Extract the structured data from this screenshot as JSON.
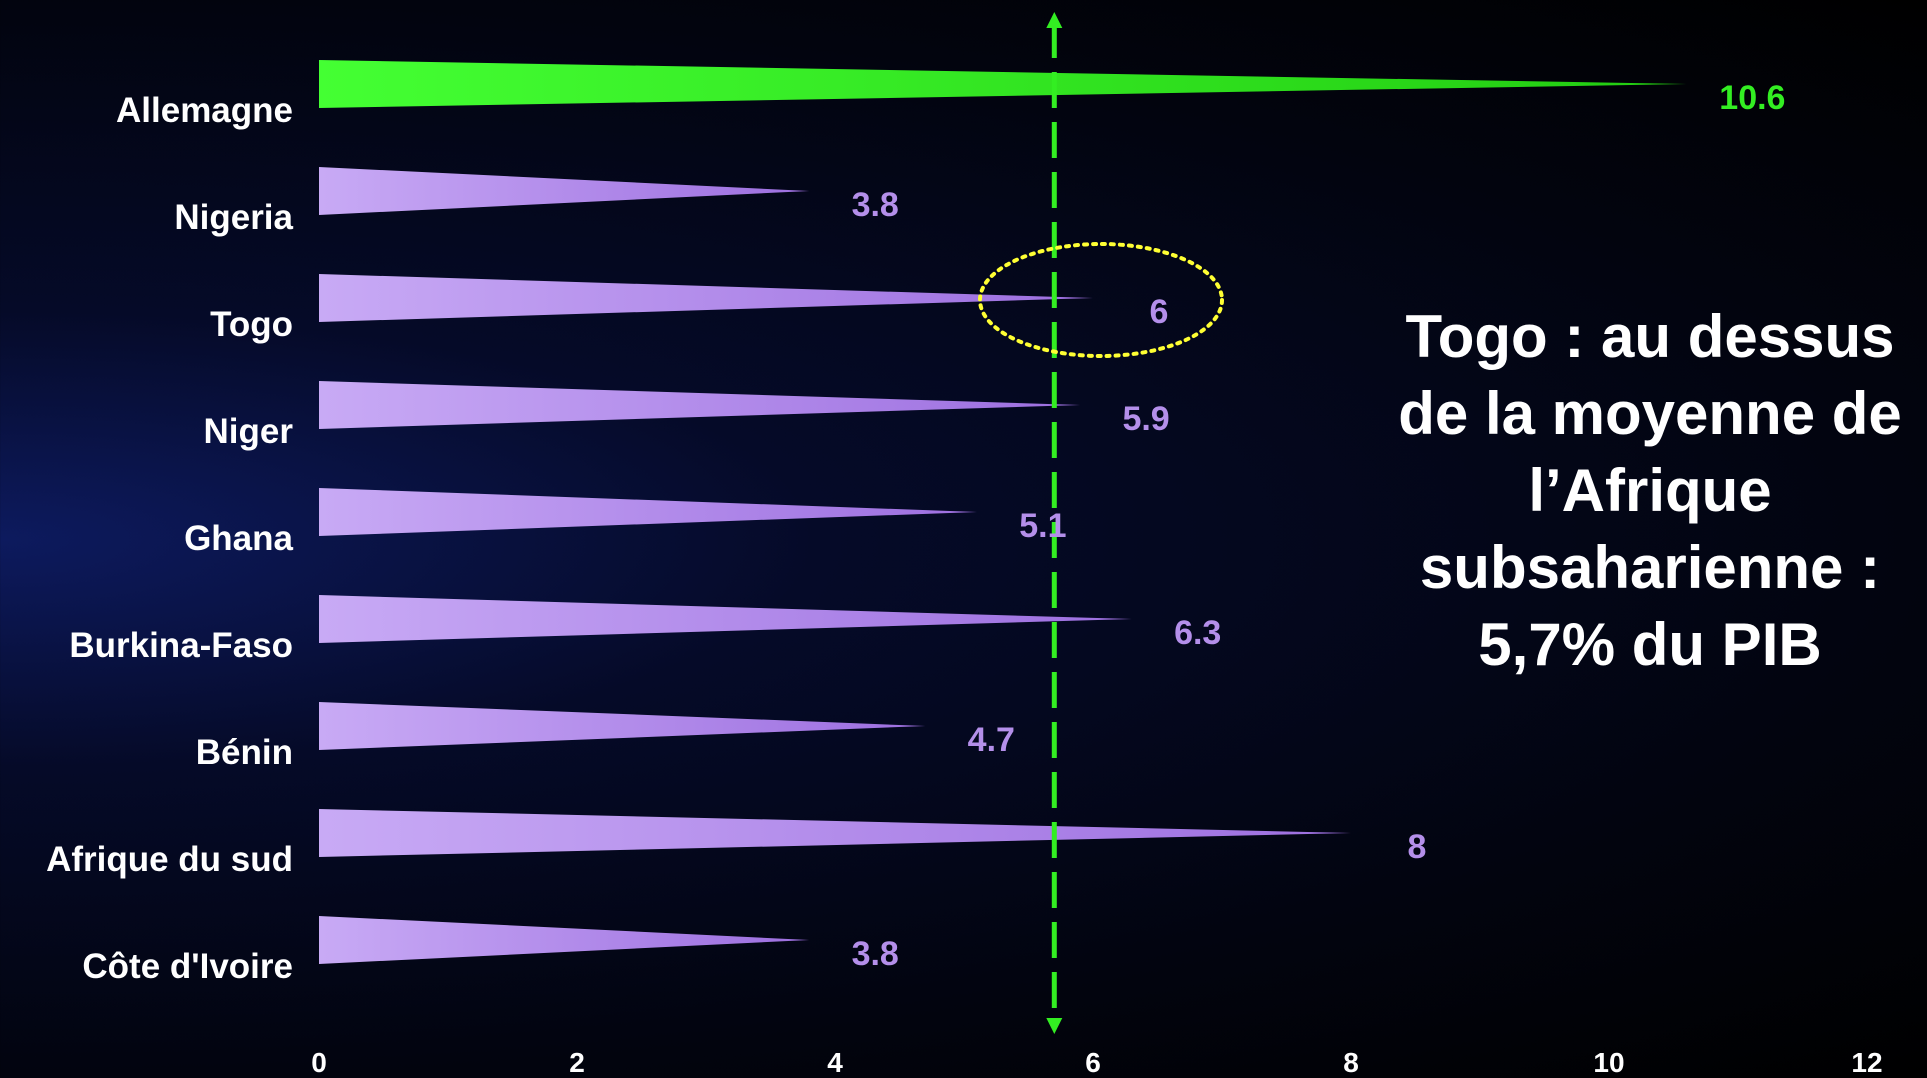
{
  "chart_data": {
    "type": "bar",
    "categories": [
      "Allemagne",
      "Nigeria",
      "Togo",
      "Niger",
      "Ghana",
      "Burkina-Faso",
      "Bénin",
      "Afrique du sud",
      "Côte d'Ivoire"
    ],
    "values": [
      10.6,
      3.8,
      6,
      5.9,
      5.1,
      6.3,
      4.7,
      8,
      3.8
    ],
    "value_labels": [
      "10.6",
      "3.8",
      "6",
      "5.9",
      "5.1",
      "6.3",
      "4.7",
      "8",
      "3.8"
    ],
    "xlim": [
      0,
      12
    ],
    "x_ticks": [
      "0",
      "2",
      "4",
      "6",
      "8",
      "10",
      "12"
    ],
    "reference_line": 5.7,
    "highlight_category": "Togo",
    "colors": {
      "highlight": "#33ee22",
      "default": "#b48fea",
      "reference_line": "#33ee22",
      "highlight_circle": "#ffff33"
    },
    "grid": false,
    "orientation": "horizontal"
  },
  "annotation": {
    "lines": [
      "Togo : au dessus",
      "de la moyenne de",
      "l’Afrique",
      "subsaharienne :",
      "5,7% du PIB"
    ]
  }
}
